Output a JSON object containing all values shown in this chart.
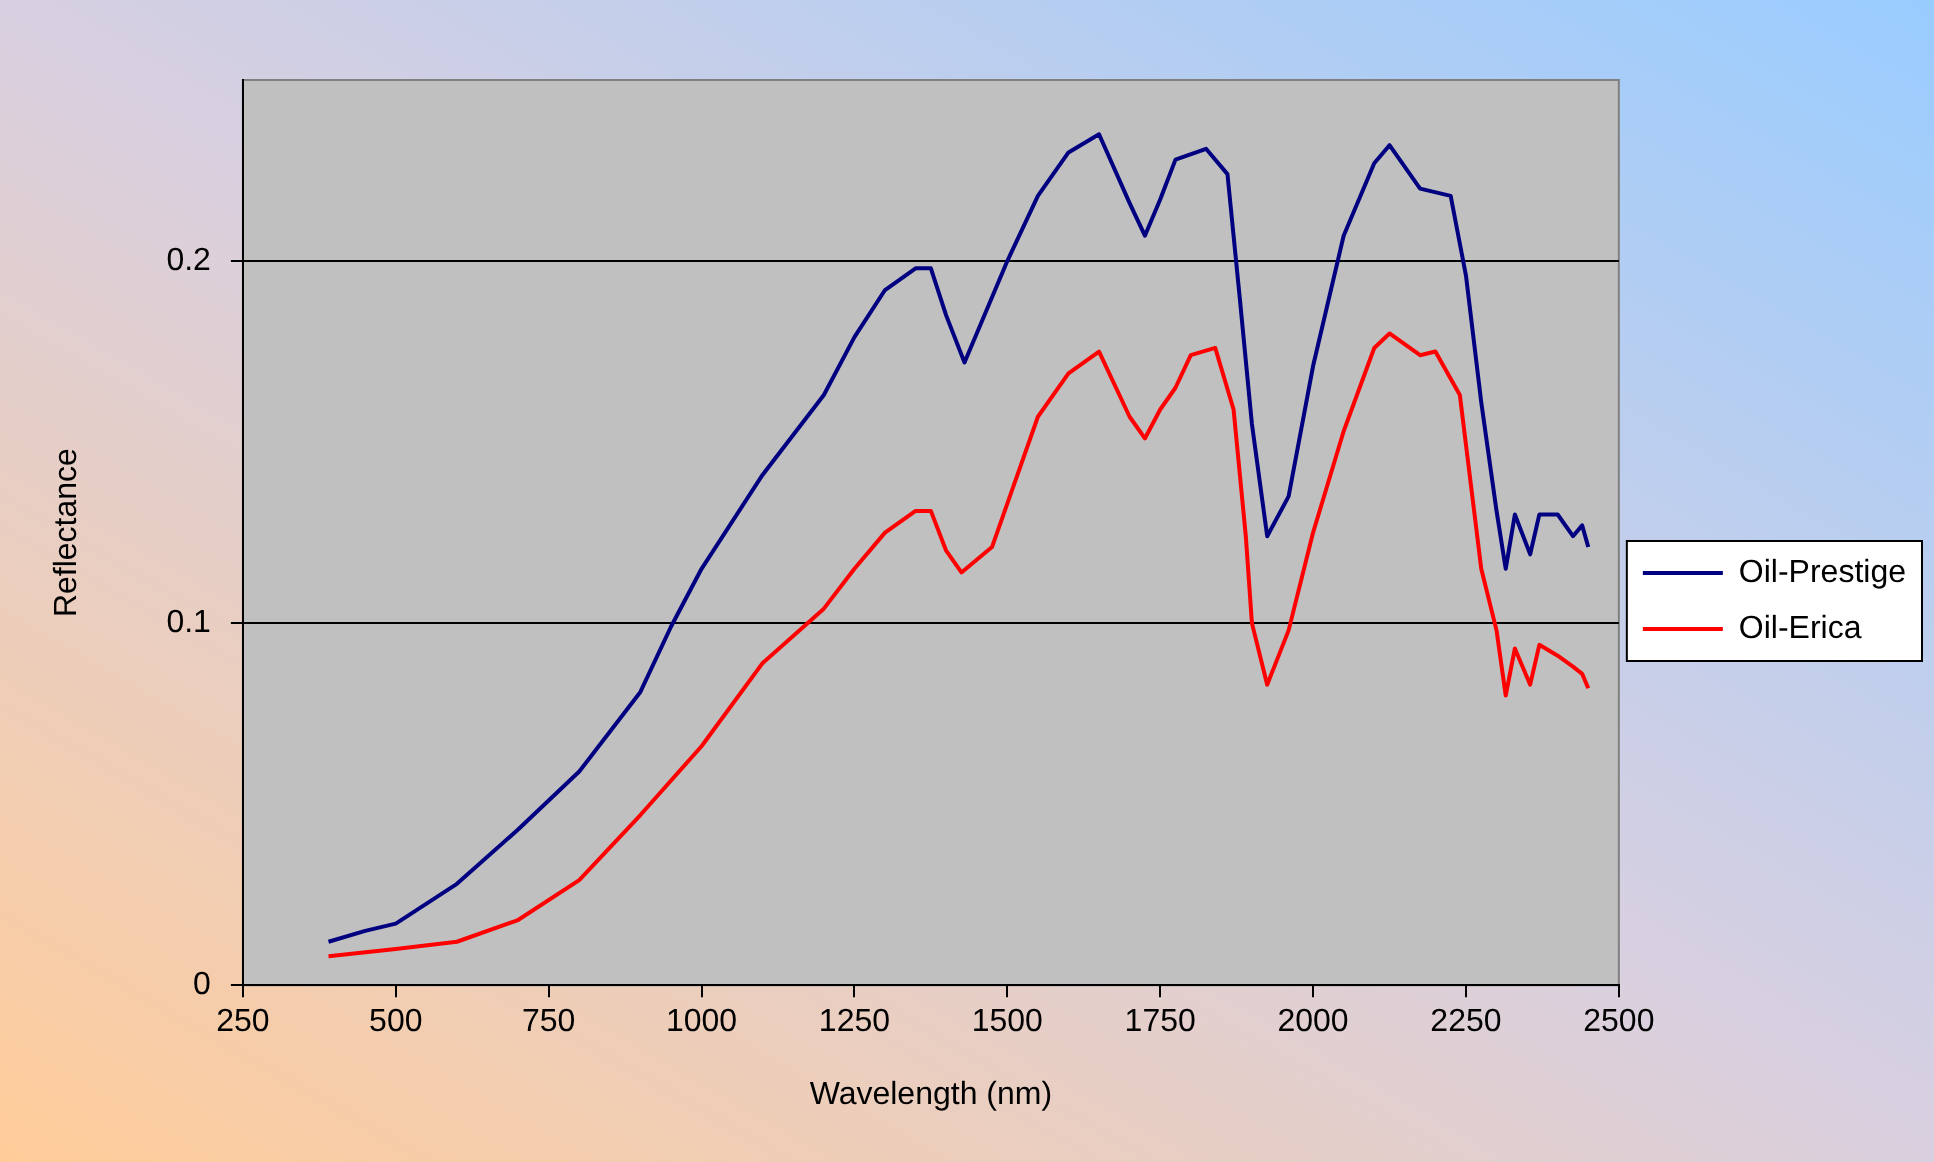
{
  "chart_data": {
    "type": "line",
    "xlabel": "Wavelength (nm)",
    "ylabel": "Reflectance",
    "xlim": [
      250,
      2500
    ],
    "xticks": [
      250,
      500,
      750,
      1000,
      1250,
      1500,
      1750,
      2000,
      2250,
      2500
    ],
    "ylim": [
      0,
      0.25
    ],
    "yticks": [
      0,
      0.1,
      0.2
    ],
    "grid": "y",
    "legend": "right",
    "series": [
      {
        "name": "Oil-Prestige",
        "color": "#000080",
        "x": [
          390,
          450,
          500,
          600,
          700,
          800,
          900,
          950,
          1000,
          1100,
          1200,
          1250,
          1300,
          1350,
          1375,
          1400,
          1430,
          1500,
          1550,
          1600,
          1650,
          1700,
          1725,
          1750,
          1775,
          1825,
          1860,
          1880,
          1900,
          1925,
          1960,
          2000,
          2050,
          2100,
          2125,
          2175,
          2225,
          2250,
          2275,
          2300,
          2315,
          2330,
          2355,
          2370,
          2400,
          2425,
          2440,
          2450
        ],
        "values": [
          0.012,
          0.015,
          0.017,
          0.028,
          0.043,
          0.059,
          0.081,
          0.099,
          0.115,
          0.141,
          0.163,
          0.179,
          0.192,
          0.198,
          0.198,
          0.185,
          0.172,
          0.2,
          0.218,
          0.23,
          0.235,
          0.216,
          0.207,
          0.217,
          0.228,
          0.231,
          0.224,
          0.19,
          0.155,
          0.124,
          0.135,
          0.171,
          0.207,
          0.227,
          0.232,
          0.22,
          0.218,
          0.196,
          0.161,
          0.131,
          0.115,
          0.13,
          0.119,
          0.13,
          0.13,
          0.124,
          0.127,
          0.121
        ]
      },
      {
        "name": "Oil-Erica",
        "color": "#ff0000",
        "x": [
          390,
          500,
          600,
          700,
          800,
          900,
          1000,
          1100,
          1200,
          1250,
          1300,
          1350,
          1375,
          1400,
          1425,
          1475,
          1500,
          1550,
          1600,
          1650,
          1700,
          1725,
          1750,
          1775,
          1800,
          1840,
          1870,
          1890,
          1900,
          1925,
          1960,
          2000,
          2050,
          2100,
          2125,
          2175,
          2200,
          2240,
          2275,
          2300,
          2315,
          2330,
          2355,
          2370,
          2400,
          2425,
          2440,
          2450
        ],
        "values": [
          0.008,
          0.01,
          0.012,
          0.018,
          0.029,
          0.047,
          0.066,
          0.089,
          0.104,
          0.115,
          0.125,
          0.131,
          0.131,
          0.12,
          0.114,
          0.121,
          0.133,
          0.157,
          0.169,
          0.175,
          0.157,
          0.151,
          0.159,
          0.165,
          0.174,
          0.176,
          0.159,
          0.124,
          0.1,
          0.083,
          0.098,
          0.125,
          0.153,
          0.176,
          0.18,
          0.174,
          0.175,
          0.163,
          0.115,
          0.098,
          0.08,
          0.093,
          0.083,
          0.094,
          0.091,
          0.088,
          0.086,
          0.082
        ]
      }
    ]
  }
}
